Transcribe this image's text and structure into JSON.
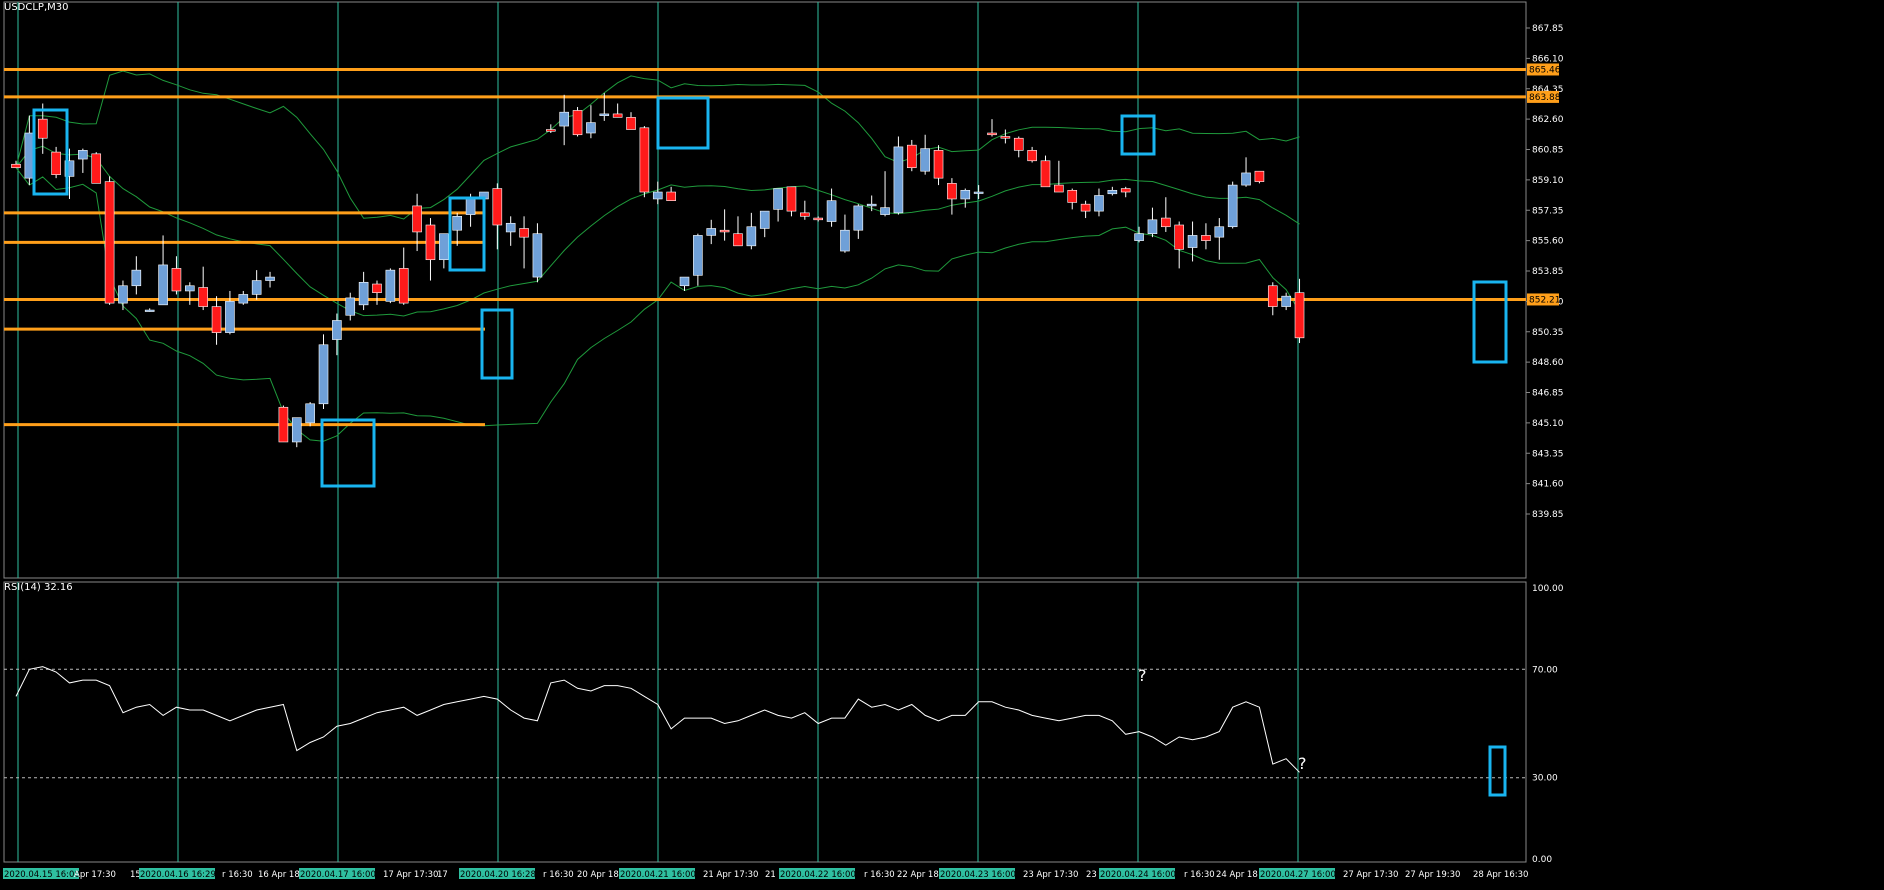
{
  "window": {
    "symbol_caption": "USDCLP,M30",
    "rsi_caption": "RSI(14) 32.16"
  },
  "colors": {
    "background": "#000000",
    "separator": "#2fbfa0",
    "bull_candle": "#6fa0d8",
    "bear_candle": "#ff1a1a",
    "bollinger": "#1f9a3c",
    "level_line": "#ff9f1a",
    "marker_box": "#19b5f0",
    "rsi_line": "#ffffff",
    "axis_text": "#ffffff",
    "price_tag": "#ff9f1a"
  },
  "price_axis": {
    "labels": [
      "867.85",
      "866.10",
      "864.35",
      "862.60",
      "860.85",
      "859.10",
      "857.35",
      "855.60",
      "853.85",
      "852.10",
      "850.35",
      "848.60",
      "846.85",
      "845.10",
      "843.35",
      "841.60",
      "839.85"
    ],
    "tags": [
      "865.46",
      "863.88",
      "852.21"
    ]
  },
  "rsi_axis": {
    "labels": [
      "100.00",
      "70.00",
      "30.00",
      "0.00"
    ],
    "levels": [
      70,
      30
    ]
  },
  "time_axis": {
    "labels": [
      {
        "text": "2020.04.15 16:00",
        "highlight": true
      },
      {
        "text": "Apr 17:30",
        "highlight": false
      },
      {
        "text": "15",
        "highlight": false
      },
      {
        "text": "2020.04.16 16:29",
        "highlight": true
      },
      {
        "text": "r 16:30",
        "highlight": false
      },
      {
        "text": "16 Apr 18",
        "highlight": false
      },
      {
        "text": "2020.04.17 16:00",
        "highlight": true
      },
      {
        "text": "17 Apr 17:30",
        "highlight": false
      },
      {
        "text": "17",
        "highlight": false
      },
      {
        "text": "2020.04.20 16:28",
        "highlight": true
      },
      {
        "text": "r 16:30",
        "highlight": false
      },
      {
        "text": "20 Apr 18",
        "highlight": false
      },
      {
        "text": "2020.04.21 16:00",
        "highlight": true
      },
      {
        "text": "21 Apr 17:30",
        "highlight": false
      },
      {
        "text": "21",
        "highlight": false
      },
      {
        "text": "2020.04.22 16:00",
        "highlight": true
      },
      {
        "text": "r 16:30",
        "highlight": false
      },
      {
        "text": "22 Apr 18",
        "highlight": false
      },
      {
        "text": "2020.04.23 16:00",
        "highlight": true
      },
      {
        "text": "23 Apr 17:30",
        "highlight": false
      },
      {
        "text": "23",
        "highlight": false
      },
      {
        "text": "2020.04.24 16:00",
        "highlight": true
      },
      {
        "text": "r 16:30",
        "highlight": false
      },
      {
        "text": "24 Apr 18",
        "highlight": false
      },
      {
        "text": "2020.04.27 16:00",
        "highlight": true
      },
      {
        "text": "27 Apr 17:30",
        "highlight": false
      },
      {
        "text": "27 Apr 19:30",
        "highlight": false
      },
      {
        "text": "28 Apr 16:30",
        "highlight": false
      }
    ]
  },
  "annotations": {
    "question_marks": [
      "?",
      "?"
    ]
  },
  "chart_data": {
    "type": "candlestick",
    "symbol": "USDCLP",
    "timeframe": "M30",
    "ylim": [
      838.6,
      869.0
    ],
    "horizontal_levels": [
      865.46,
      863.88,
      857.2,
      855.5,
      852.21,
      850.5,
      845.0
    ],
    "candles": [
      [
        860.0,
        860.2,
        859.8,
        859.8
      ],
      [
        859.2,
        862.8,
        858.8,
        861.8
      ],
      [
        862.6,
        863.5,
        860.6,
        861.5
      ],
      [
        860.7,
        861.0,
        859.2,
        859.4
      ],
      [
        859.3,
        860.9,
        858.0,
        860.2
      ],
      [
        860.3,
        860.9,
        859.5,
        860.8
      ],
      [
        860.6,
        860.7,
        858.9,
        858.9
      ],
      [
        859.0,
        859.3,
        851.9,
        852.0
      ],
      [
        852.0,
        853.3,
        851.6,
        853.0
      ],
      [
        853.0,
        854.7,
        852.5,
        853.9
      ],
      [
        851.6,
        851.7,
        851.5,
        851.6
      ],
      [
        851.9,
        855.9,
        851.9,
        854.2
      ],
      [
        854.0,
        854.7,
        852.5,
        852.7
      ],
      [
        852.7,
        853.2,
        851.9,
        853.0
      ],
      [
        852.9,
        854.1,
        851.6,
        851.8
      ],
      [
        851.8,
        852.4,
        849.6,
        850.3
      ],
      [
        850.3,
        852.7,
        850.2,
        852.1
      ],
      [
        852.0,
        852.7,
        851.9,
        852.5
      ],
      [
        852.5,
        853.9,
        852.2,
        853.3
      ],
      [
        853.3,
        853.8,
        852.9,
        853.5
      ],
      [
        846.0,
        846.1,
        844.0,
        844.0
      ],
      [
        844.0,
        845.2,
        843.7,
        845.4
      ],
      [
        845.1,
        846.3,
        844.9,
        846.2
      ],
      [
        846.2,
        850.2,
        845.9,
        849.6
      ],
      [
        849.9,
        851.4,
        849.0,
        851.0
      ],
      [
        851.3,
        852.6,
        851.0,
        852.3
      ],
      [
        851.9,
        853.8,
        851.6,
        853.2
      ],
      [
        853.1,
        853.3,
        851.9,
        852.6
      ],
      [
        852.1,
        854.0,
        852.0,
        853.9
      ],
      [
        854.0,
        855.2,
        851.9,
        852.0
      ],
      [
        857.6,
        858.3,
        855.0,
        856.1
      ],
      [
        856.5,
        856.9,
        853.3,
        854.5
      ],
      [
        854.5,
        856.0,
        854.0,
        856.0
      ],
      [
        856.2,
        857.2,
        855.3,
        857.0
      ],
      [
        857.1,
        858.3,
        856.4,
        858.0
      ],
      [
        858.0,
        858.4,
        857.1,
        858.4
      ],
      [
        858.6,
        858.9,
        855.1,
        856.5
      ],
      [
        856.1,
        857.0,
        855.3,
        856.6
      ],
      [
        856.3,
        857.0,
        854.0,
        855.8
      ],
      [
        853.5,
        856.6,
        853.2,
        856.0
      ],
      [
        862.0,
        862.3,
        861.8,
        861.9
      ],
      [
        862.2,
        864.0,
        861.1,
        863.0
      ],
      [
        863.1,
        863.3,
        861.6,
        861.7
      ],
      [
        861.8,
        863.4,
        861.5,
        862.4
      ],
      [
        862.8,
        864.1,
        862.5,
        862.9
      ],
      [
        862.9,
        863.5,
        862.7,
        862.7
      ],
      [
        862.7,
        863.0,
        862.0,
        862.0
      ],
      [
        862.1,
        862.2,
        858.1,
        858.4
      ],
      [
        858.0,
        859.0,
        857.7,
        858.4
      ],
      [
        858.4,
        858.7,
        858.0,
        857.9
      ],
      [
        853.0,
        853.4,
        852.7,
        853.5
      ],
      [
        853.6,
        856.0,
        853.0,
        855.9
      ],
      [
        855.9,
        856.8,
        855.4,
        856.3
      ],
      [
        856.2,
        857.4,
        855.6,
        856.1
      ],
      [
        856.0,
        857.0,
        855.4,
        855.3
      ],
      [
        855.3,
        857.2,
        855.1,
        856.4
      ],
      [
        856.3,
        857.2,
        855.8,
        857.3
      ],
      [
        857.4,
        858.6,
        856.7,
        858.6
      ],
      [
        858.7,
        858.7,
        857.0,
        857.3
      ],
      [
        857.2,
        857.9,
        856.8,
        857.0
      ],
      [
        856.9,
        857.0,
        856.7,
        856.8
      ],
      [
        856.7,
        858.6,
        856.4,
        857.9
      ],
      [
        855.0,
        857.1,
        854.9,
        856.2
      ],
      [
        856.2,
        857.7,
        855.7,
        857.6
      ],
      [
        857.6,
        858.2,
        857.3,
        857.7
      ],
      [
        857.1,
        859.6,
        857.0,
        857.5
      ],
      [
        857.2,
        861.6,
        857.1,
        861.0
      ],
      [
        861.1,
        861.4,
        859.6,
        859.8
      ],
      [
        859.6,
        861.7,
        859.4,
        860.9
      ],
      [
        860.8,
        861.1,
        858.8,
        859.2
      ],
      [
        858.9,
        859.2,
        857.1,
        858.0
      ],
      [
        858.0,
        858.6,
        857.5,
        858.5
      ],
      [
        858.4,
        858.8,
        858.0,
        858.4
      ],
      [
        861.8,
        862.6,
        861.6,
        861.7
      ],
      [
        861.6,
        862.0,
        861.2,
        861.5
      ],
      [
        861.5,
        861.6,
        860.4,
        860.8
      ],
      [
        860.8,
        861.0,
        860.1,
        860.2
      ],
      [
        860.2,
        860.5,
        858.7,
        858.7
      ],
      [
        858.8,
        860.2,
        858.4,
        858.4
      ],
      [
        858.5,
        858.6,
        857.4,
        857.8
      ],
      [
        857.7,
        857.9,
        856.9,
        857.3
      ],
      [
        857.3,
        858.6,
        857.0,
        858.2
      ],
      [
        858.3,
        858.7,
        858.2,
        858.5
      ],
      [
        858.6,
        858.7,
        858.1,
        858.4
      ],
      [
        855.6,
        856.4,
        855.5,
        856.0
      ],
      [
        856.0,
        857.5,
        855.8,
        856.8
      ],
      [
        856.9,
        858.1,
        856.1,
        856.4
      ],
      [
        856.5,
        856.7,
        854.0,
        855.1
      ],
      [
        855.2,
        856.7,
        854.4,
        855.9
      ],
      [
        855.9,
        856.6,
        855.1,
        855.6
      ],
      [
        855.8,
        856.9,
        854.5,
        856.4
      ],
      [
        856.4,
        859.0,
        856.3,
        858.8
      ],
      [
        858.8,
        860.4,
        858.7,
        859.5
      ],
      [
        859.6,
        859.6,
        858.9,
        859.0
      ],
      [
        853.0,
        853.2,
        851.3,
        851.8
      ],
      [
        851.8,
        852.6,
        851.6,
        852.4
      ],
      [
        852.6,
        853.4,
        849.7,
        850.0
      ]
    ],
    "rsi": [
      60,
      70,
      71,
      69,
      65,
      66,
      66,
      64,
      54,
      56,
      57,
      53,
      56,
      55,
      55,
      53,
      51,
      53,
      55,
      56,
      57,
      40,
      43,
      45,
      49,
      50,
      52,
      54,
      55,
      56,
      53,
      55,
      57,
      58,
      59,
      60,
      59,
      55,
      52,
      51,
      65,
      66,
      63,
      62,
      64,
      64,
      63,
      60,
      57,
      48,
      52,
      52,
      52,
      50,
      51,
      53,
      55,
      53,
      52,
      54,
      50,
      52,
      52,
      59,
      56,
      57,
      55,
      57,
      53,
      51,
      53,
      53,
      58,
      58,
      56,
      55,
      53,
      52,
      51,
      52,
      53,
      53,
      51,
      46,
      47,
      45,
      42,
      45,
      44,
      45,
      47,
      56,
      58,
      56,
      35,
      37,
      32
    ]
  }
}
